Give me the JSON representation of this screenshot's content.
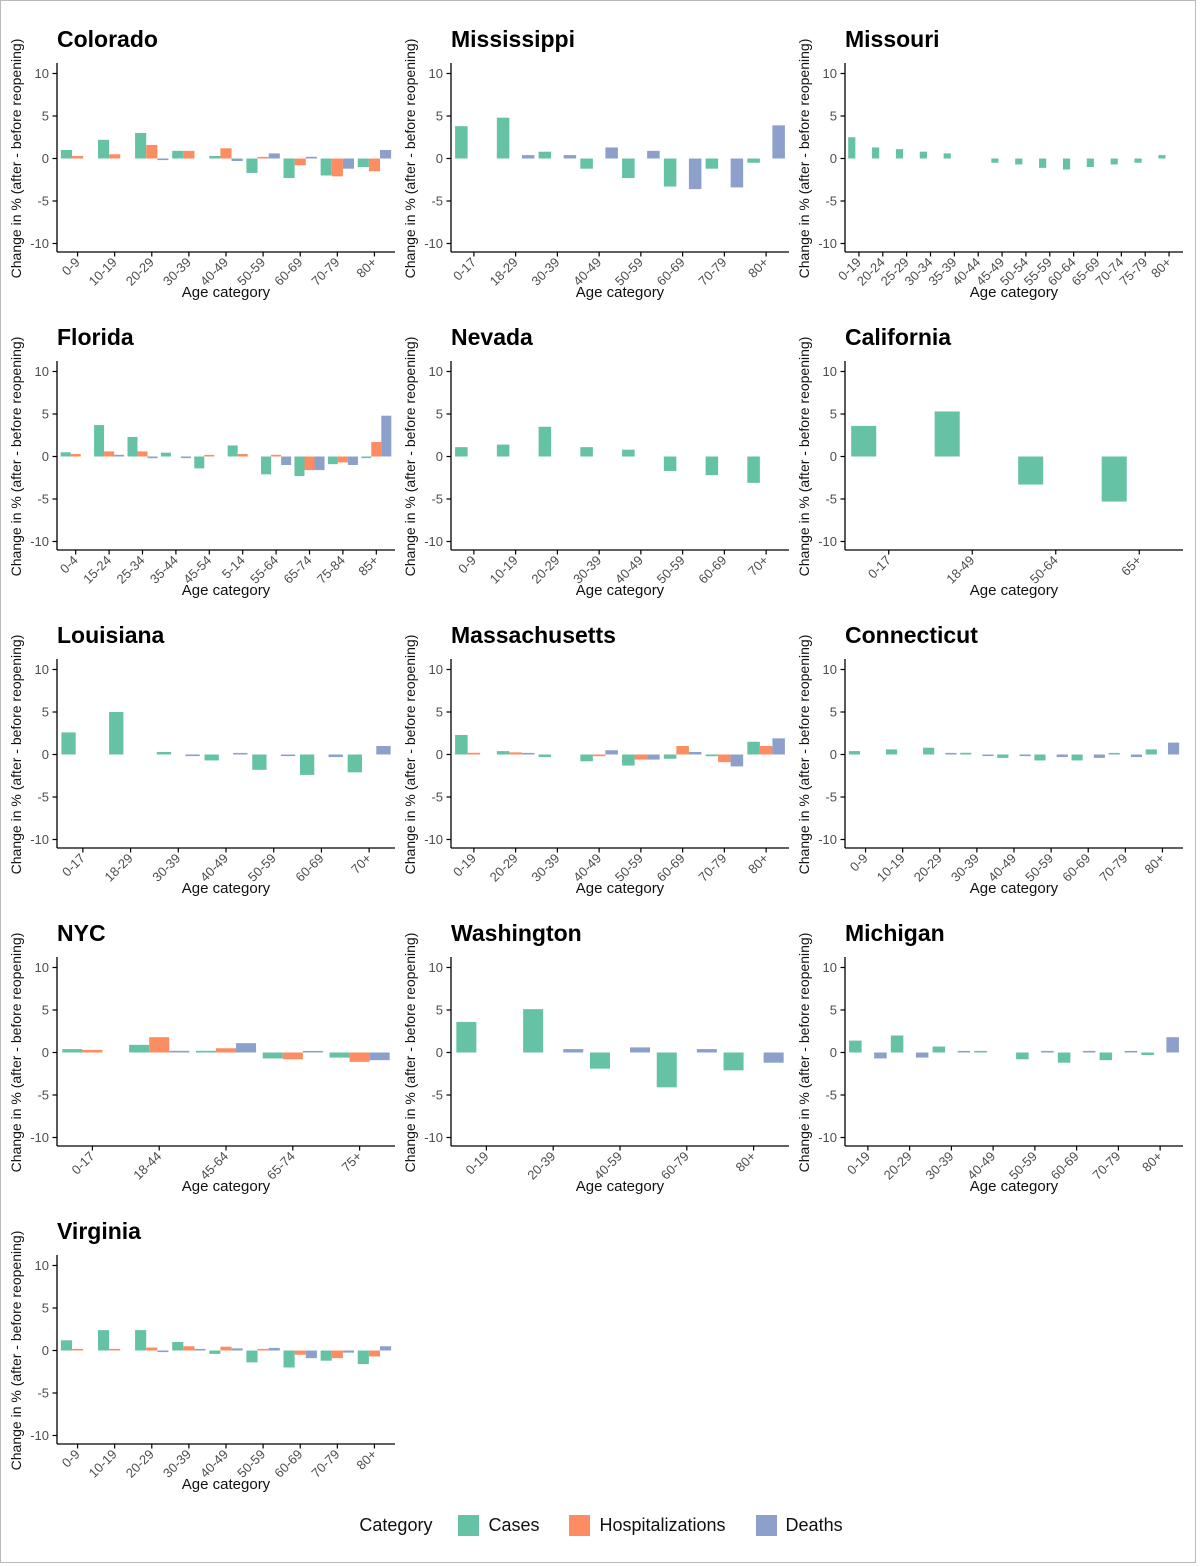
{
  "page": {
    "background": "#ffffff",
    "border_color": "#b9b9b9"
  },
  "legend": {
    "title": "Category",
    "items": [
      {
        "key": "cases",
        "label": "Cases",
        "color": "#66C2A5"
      },
      {
        "key": "hospitalizations",
        "label": "Hospitalizations",
        "color": "#FC8D62"
      },
      {
        "key": "deaths",
        "label": "Deaths",
        "color": "#8DA0CB"
      }
    ]
  },
  "axis": {
    "ylabel": "Change in % (after - before reopening)",
    "xlabel": "Age category",
    "yticks": [
      10,
      5,
      0,
      -5,
      -10
    ],
    "ylim": [
      -11,
      11
    ],
    "grid": false
  },
  "chart_data": [
    {
      "type": "bar",
      "title": "Colorado",
      "categories": [
        "0-9",
        "10-19",
        "20-29",
        "30-39",
        "40-49",
        "50-59",
        "60-69",
        "70-79",
        "80+"
      ],
      "series": [
        {
          "name": "cases",
          "values": [
            1.0,
            2.2,
            3.0,
            0.9,
            0.3,
            -1.7,
            -2.3,
            -2.0,
            -1.0
          ]
        },
        {
          "name": "hospitalizations",
          "values": [
            0.3,
            0.5,
            1.6,
            0.9,
            1.2,
            0.15,
            -0.8,
            -2.1,
            -1.5
          ]
        },
        {
          "name": "deaths",
          "values": [
            null,
            null,
            -0.1,
            null,
            -0.3,
            0.6,
            0.2,
            -1.2,
            1.0
          ]
        }
      ]
    },
    {
      "type": "bar",
      "title": "Mississippi",
      "categories": [
        "0-17",
        "18-29",
        "30-39",
        "40-49",
        "50-59",
        "60-69",
        "70-79",
        "80+"
      ],
      "series": [
        {
          "name": "cases",
          "values": [
            3.8,
            4.8,
            0.8,
            -1.2,
            -2.3,
            -3.3,
            -1.2,
            -0.5
          ]
        },
        {
          "name": "deaths",
          "values": [
            null,
            0.4,
            0.4,
            1.3,
            0.9,
            -3.6,
            -3.4,
            3.9
          ]
        }
      ]
    },
    {
      "type": "bar",
      "title": "Missouri",
      "categories": [
        "0-19",
        "20-24",
        "25-29",
        "30-34",
        "35-39",
        "40-44",
        "45-49",
        "50-54",
        "55-59",
        "60-64",
        "65-69",
        "70-74",
        "75-79",
        "80+"
      ],
      "series": [
        {
          "name": "cases",
          "values": [
            2.5,
            1.3,
            1.1,
            0.8,
            0.6,
            null,
            -0.5,
            -0.7,
            -1.1,
            -1.3,
            -1.0,
            -0.7,
            -0.5,
            0.4
          ]
        }
      ]
    },
    {
      "type": "bar",
      "title": "Florida",
      "categories": [
        "0-4",
        "15-24",
        "25-34",
        "35-44",
        "45-54",
        "5-14",
        "55-64",
        "65-74",
        "75-84",
        "85+"
      ],
      "series": [
        {
          "name": "cases",
          "values": [
            0.5,
            3.7,
            2.3,
            0.45,
            -1.4,
            1.3,
            -2.1,
            -2.3,
            -0.9,
            -0.1
          ]
        },
        {
          "name": "hospitalizations",
          "values": [
            0.3,
            0.6,
            0.6,
            null,
            0.1,
            0.3,
            0.2,
            -1.6,
            -0.7,
            1.7
          ]
        },
        {
          "name": "deaths",
          "values": [
            null,
            0.2,
            -0.2,
            -0.15,
            null,
            null,
            -1.0,
            -1.6,
            -1.0,
            4.8
          ]
        }
      ]
    },
    {
      "type": "bar",
      "title": "Nevada",
      "categories": [
        "0-9",
        "10-19",
        "20-29",
        "30-39",
        "40-49",
        "50-59",
        "60-69",
        "70+"
      ],
      "series": [
        {
          "name": "cases",
          "values": [
            1.1,
            1.4,
            3.5,
            1.1,
            0.8,
            -1.7,
            -2.2,
            -3.1
          ]
        }
      ]
    },
    {
      "type": "bar",
      "title": "California",
      "categories": [
        "0-17",
        "18-49",
        "50-64",
        "65+"
      ],
      "series": [
        {
          "name": "cases",
          "values": [
            3.6,
            5.3,
            -3.3,
            -5.3
          ]
        }
      ]
    },
    {
      "type": "bar",
      "title": "Louisiana",
      "categories": [
        "0-17",
        "18-29",
        "30-39",
        "40-49",
        "50-59",
        "60-69",
        "70+"
      ],
      "series": [
        {
          "name": "cases",
          "values": [
            2.6,
            5.0,
            0.3,
            -0.7,
            -1.8,
            -2.4,
            -2.1
          ]
        },
        {
          "name": "deaths",
          "values": [
            null,
            null,
            -0.05,
            0.05,
            -0.15,
            -0.3,
            1.0
          ]
        }
      ]
    },
    {
      "type": "bar",
      "title": "Massachusetts",
      "categories": [
        "0-19",
        "20-29",
        "30-39",
        "40-49",
        "50-59",
        "60-69",
        "70-79",
        "80+"
      ],
      "series": [
        {
          "name": "cases",
          "values": [
            2.3,
            0.4,
            -0.3,
            -0.8,
            -1.3,
            -0.5,
            -0.2,
            1.5
          ]
        },
        {
          "name": "hospitalizations",
          "values": [
            0.2,
            0.25,
            null,
            -0.2,
            -0.6,
            1.0,
            -0.9,
            1.0
          ]
        },
        {
          "name": "deaths",
          "values": [
            null,
            0.1,
            null,
            0.5,
            -0.6,
            0.3,
            -1.4,
            1.9
          ]
        }
      ]
    },
    {
      "type": "bar",
      "title": "Connecticut",
      "categories": [
        "0-9",
        "10-19",
        "20-29",
        "30-39",
        "40-49",
        "50-59",
        "60-69",
        "70-79",
        "80+"
      ],
      "series": [
        {
          "name": "cases",
          "values": [
            0.4,
            0.6,
            0.8,
            0.2,
            -0.4,
            -0.7,
            -0.7,
            0.1,
            0.6
          ]
        },
        {
          "name": "deaths",
          "values": [
            null,
            null,
            0.15,
            -0.1,
            -0.1,
            -0.3,
            -0.4,
            -0.3,
            1.4
          ]
        }
      ]
    },
    {
      "type": "bar",
      "title": "NYC",
      "categories": [
        "0-17",
        "18-44",
        "45-64",
        "65-74",
        "75+"
      ],
      "series": [
        {
          "name": "cases",
          "values": [
            0.4,
            0.9,
            0.2,
            -0.7,
            -0.6
          ]
        },
        {
          "name": "hospitalizations",
          "values": [
            0.3,
            1.8,
            0.5,
            -0.8,
            -1.1
          ]
        },
        {
          "name": "deaths",
          "values": [
            null,
            0.2,
            1.1,
            0.1,
            -0.9
          ]
        }
      ]
    },
    {
      "type": "bar",
      "title": "Washington",
      "categories": [
        "0-19",
        "20-39",
        "40-59",
        "60-79",
        "80+"
      ],
      "series": [
        {
          "name": "cases",
          "values": [
            3.6,
            5.1,
            -1.9,
            -4.1,
            -2.1
          ]
        },
        {
          "name": "deaths",
          "values": [
            null,
            0.4,
            0.6,
            0.4,
            -1.2
          ]
        }
      ]
    },
    {
      "type": "bar",
      "title": "Michigan",
      "categories": [
        "0-19",
        "20-29",
        "30-39",
        "40-49",
        "50-59",
        "60-69",
        "70-79",
        "80+"
      ],
      "series": [
        {
          "name": "cases",
          "values": [
            1.4,
            2.0,
            0.7,
            0.1,
            -0.8,
            -1.2,
            -0.9,
            -0.3
          ]
        },
        {
          "name": "deaths",
          "values": [
            -0.7,
            -0.6,
            0.1,
            null,
            0.05,
            0.1,
            0.1,
            1.8
          ]
        }
      ]
    },
    {
      "type": "bar",
      "title": "Virginia",
      "categories": [
        "0-9",
        "10-19",
        "20-29",
        "30-39",
        "40-49",
        "50-59",
        "60-69",
        "70-79",
        "80+"
      ],
      "series": [
        {
          "name": "cases",
          "values": [
            1.2,
            2.4,
            2.4,
            1.0,
            -0.4,
            -1.4,
            -2.0,
            -1.2,
            -1.6
          ]
        },
        {
          "name": "hospitalizations",
          "values": [
            0.1,
            0.15,
            0.35,
            0.5,
            0.45,
            0.15,
            -0.5,
            -0.9,
            -0.7
          ]
        },
        {
          "name": "deaths",
          "values": [
            null,
            null,
            -0.1,
            0.1,
            0.25,
            0.3,
            -0.9,
            -0.25,
            0.5
          ]
        }
      ]
    }
  ]
}
